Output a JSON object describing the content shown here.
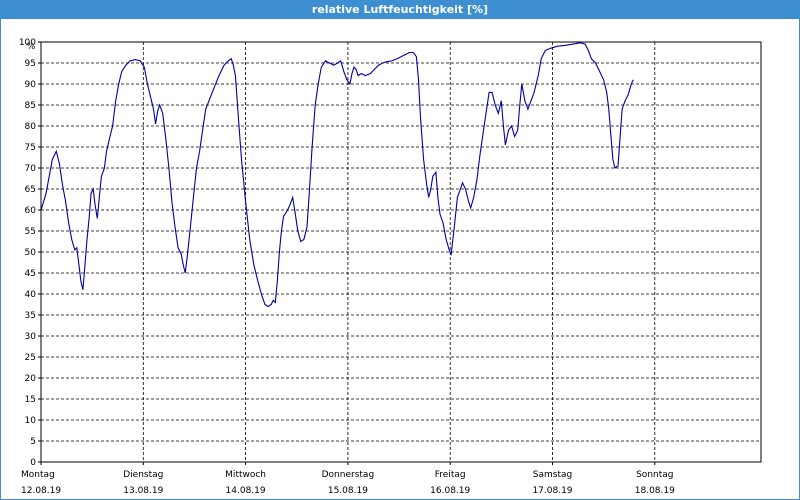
{
  "window": {
    "title": "relative Luftfeuchtigkeit [%]"
  },
  "colors": {
    "titlebar": "#3d8fd1",
    "series": "#0000a0",
    "grid": "#000000"
  },
  "chart_data": {
    "type": "line",
    "title": "relative Luftfeuchtigkeit [%]",
    "yunit": "%",
    "ylim": [
      0,
      100
    ],
    "ytick_step": 5,
    "grid": true,
    "x_range_days": [
      0,
      7
    ],
    "x_ticks": [
      {
        "day": "Montag",
        "date": "12.08.19"
      },
      {
        "day": "Dienstag",
        "date": "13.08.19"
      },
      {
        "day": "Mittwoch",
        "date": "14.08.19"
      },
      {
        "day": "Donnerstag",
        "date": "15.08.19"
      },
      {
        "day": "Freitag",
        "date": "16.08.19"
      },
      {
        "day": "Samstag",
        "date": "17.08.19"
      },
      {
        "day": "Sonntag",
        "date": "18.08.19"
      }
    ],
    "series": [
      {
        "points": [
          [
            0,
            60
          ],
          [
            0.02,
            61.5
          ],
          [
            0.05,
            64
          ],
          [
            0.08,
            68
          ],
          [
            0.11,
            72
          ],
          [
            0.15,
            74
          ],
          [
            0.18,
            71
          ],
          [
            0.21,
            66
          ],
          [
            0.24,
            62
          ],
          [
            0.27,
            57
          ],
          [
            0.3,
            53
          ],
          [
            0.33,
            50.5
          ],
          [
            0.35,
            51
          ],
          [
            0.37,
            47
          ],
          [
            0.39,
            43
          ],
          [
            0.41,
            41
          ],
          [
            0.43,
            47
          ],
          [
            0.45,
            53
          ],
          [
            0.47,
            58
          ],
          [
            0.49,
            64
          ],
          [
            0.51,
            65
          ],
          [
            0.53,
            61
          ],
          [
            0.55,
            58
          ],
          [
            0.57,
            63
          ],
          [
            0.59,
            68
          ],
          [
            0.62,
            70
          ],
          [
            0.64,
            74
          ],
          [
            0.67,
            77
          ],
          [
            0.7,
            80
          ],
          [
            0.73,
            86
          ],
          [
            0.76,
            90
          ],
          [
            0.79,
            93
          ],
          [
            0.83,
            94.5
          ],
          [
            0.87,
            95.5
          ],
          [
            0.92,
            95.8
          ],
          [
            0.97,
            95.5
          ],
          [
            1.01,
            94
          ],
          [
            1.04,
            90
          ],
          [
            1.07,
            87
          ],
          [
            1.1,
            84
          ],
          [
            1.12,
            80.5
          ],
          [
            1.14,
            83.5
          ],
          [
            1.16,
            85
          ],
          [
            1.19,
            83
          ],
          [
            1.22,
            77
          ],
          [
            1.25,
            70
          ],
          [
            1.28,
            62
          ],
          [
            1.31,
            56
          ],
          [
            1.34,
            51
          ],
          [
            1.37,
            49.5
          ],
          [
            1.39,
            47
          ],
          [
            1.41,
            45
          ],
          [
            1.43,
            49
          ],
          [
            1.46,
            56
          ],
          [
            1.49,
            63
          ],
          [
            1.52,
            70
          ],
          [
            1.55,
            74
          ],
          [
            1.58,
            79
          ],
          [
            1.61,
            84
          ],
          [
            1.65,
            86.5
          ],
          [
            1.69,
            89
          ],
          [
            1.74,
            92
          ],
          [
            1.79,
            94.5
          ],
          [
            1.83,
            95.5
          ],
          [
            1.86,
            96
          ],
          [
            1.88,
            94.5
          ],
          [
            1.9,
            92
          ],
          [
            1.93,
            82
          ],
          [
            1.96,
            72
          ],
          [
            2,
            62
          ],
          [
            2.04,
            53
          ],
          [
            2.08,
            47
          ],
          [
            2.12,
            43
          ],
          [
            2.16,
            39.5
          ],
          [
            2.19,
            37.5
          ],
          [
            2.22,
            37
          ],
          [
            2.25,
            37.5
          ],
          [
            2.27,
            38.5
          ],
          [
            2.29,
            38
          ],
          [
            2.31,
            43
          ],
          [
            2.33,
            50
          ],
          [
            2.35,
            55
          ],
          [
            2.37,
            58.5
          ],
          [
            2.4,
            59.5
          ],
          [
            2.43,
            61
          ],
          [
            2.46,
            63
          ],
          [
            2.48,
            60
          ],
          [
            2.51,
            55
          ],
          [
            2.54,
            52.5
          ],
          [
            2.57,
            53
          ],
          [
            2.6,
            56
          ],
          [
            2.62,
            63
          ],
          [
            2.65,
            75
          ],
          [
            2.68,
            85
          ],
          [
            2.71,
            90
          ],
          [
            2.74,
            94
          ],
          [
            2.78,
            95.5
          ],
          [
            2.82,
            95
          ],
          [
            2.86,
            94.5
          ],
          [
            2.9,
            95
          ],
          [
            2.93,
            95.5
          ],
          [
            2.96,
            93
          ],
          [
            2.99,
            91
          ],
          [
            3.02,
            90
          ],
          [
            3.04,
            92.5
          ],
          [
            3.06,
            94
          ],
          [
            3.08,
            93.5
          ],
          [
            3.1,
            92
          ],
          [
            3.13,
            92.5
          ],
          [
            3.17,
            92
          ],
          [
            3.22,
            92.5
          ],
          [
            3.26,
            93.5
          ],
          [
            3.3,
            94.5
          ],
          [
            3.34,
            95
          ],
          [
            3.38,
            95.3
          ],
          [
            3.43,
            95.5
          ],
          [
            3.48,
            96
          ],
          [
            3.52,
            96.5
          ],
          [
            3.56,
            97
          ],
          [
            3.6,
            97.5
          ],
          [
            3.64,
            97.5
          ],
          [
            3.67,
            96.5
          ],
          [
            3.69,
            91
          ],
          [
            3.71,
            82
          ],
          [
            3.74,
            72
          ],
          [
            3.77,
            66
          ],
          [
            3.79,
            63
          ],
          [
            3.81,
            65
          ],
          [
            3.83,
            68
          ],
          [
            3.86,
            69
          ],
          [
            3.88,
            63
          ],
          [
            3.9,
            59
          ],
          [
            3.93,
            57
          ],
          [
            3.96,
            53
          ],
          [
            3.99,
            50.5
          ],
          [
            4.01,
            49.5
          ],
          [
            4.04,
            56
          ],
          [
            4.07,
            63
          ],
          [
            4.1,
            65
          ],
          [
            4.12,
            66.5
          ],
          [
            4.15,
            65
          ],
          [
            4.18,
            62
          ],
          [
            4.2,
            60.5
          ],
          [
            4.23,
            63
          ],
          [
            4.26,
            67
          ],
          [
            4.29,
            73
          ],
          [
            4.32,
            78
          ],
          [
            4.35,
            83
          ],
          [
            4.38,
            88
          ],
          [
            4.41,
            88
          ],
          [
            4.44,
            85
          ],
          [
            4.47,
            83
          ],
          [
            4.5,
            86
          ],
          [
            4.52,
            80
          ],
          [
            4.54,
            75.5
          ],
          [
            4.57,
            79
          ],
          [
            4.6,
            80
          ],
          [
            4.63,
            77.5
          ],
          [
            4.66,
            79
          ],
          [
            4.68,
            85
          ],
          [
            4.7,
            90
          ],
          [
            4.73,
            86
          ],
          [
            4.76,
            84
          ],
          [
            4.79,
            86
          ],
          [
            4.82,
            88
          ],
          [
            4.86,
            92
          ],
          [
            4.89,
            96
          ],
          [
            4.93,
            98
          ],
          [
            4.98,
            98.5
          ],
          [
            5.05,
            99
          ],
          [
            5.12,
            99.2
          ],
          [
            5.2,
            99.5
          ],
          [
            5.27,
            99.8
          ],
          [
            5.32,
            99.5
          ],
          [
            5.35,
            98
          ],
          [
            5.38,
            96
          ],
          [
            5.42,
            95
          ],
          [
            5.46,
            93
          ],
          [
            5.5,
            91
          ],
          [
            5.53,
            88
          ],
          [
            5.55,
            84
          ],
          [
            5.57,
            78
          ],
          [
            5.59,
            72
          ],
          [
            5.61,
            70
          ],
          [
            5.64,
            70.5
          ],
          [
            5.66,
            77
          ],
          [
            5.68,
            84
          ],
          [
            5.71,
            86
          ],
          [
            5.74,
            87.5
          ],
          [
            5.77,
            90
          ],
          [
            5.79,
            91
          ]
        ]
      }
    ]
  }
}
